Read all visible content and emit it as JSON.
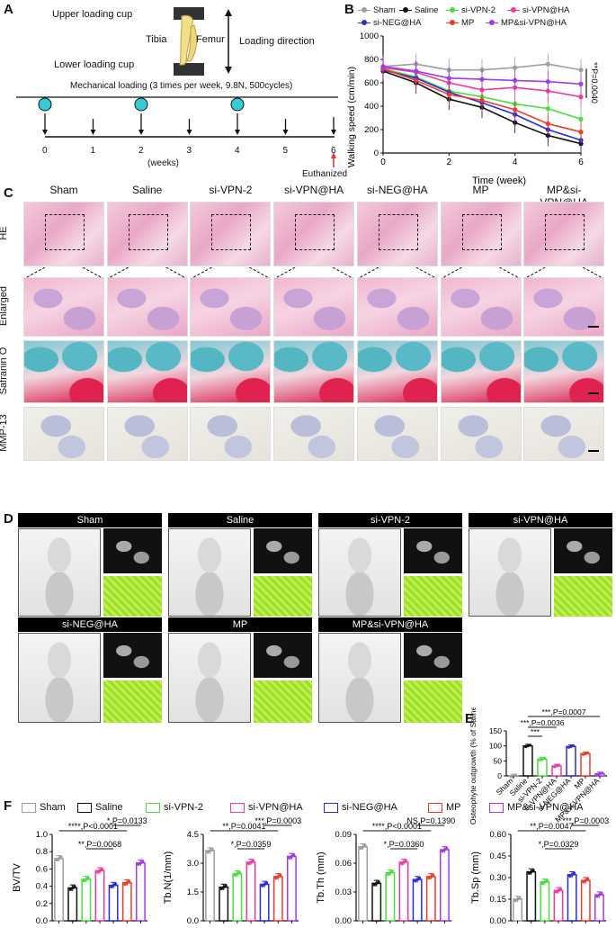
{
  "panels": {
    "A": "A",
    "B": "B",
    "C": "C",
    "D": "D",
    "E": "E",
    "F": "F"
  },
  "panel_a": {
    "upper_cup": "Upper loading cup",
    "lower_cup": "Lower loading cup",
    "tibia": "Tibia",
    "femur": "Femur",
    "direction": "Loading direction",
    "protocol": "Mechanical loading (3 times per week, 9.8N, 500cycles)",
    "ticks": [
      "0",
      "1",
      "2",
      "3",
      "4",
      "5",
      "6"
    ],
    "weeks": "(weeks)",
    "euthanized": "Euthanized",
    "colors": {
      "circle": "#38c9d6",
      "arrow_red": "#e53935"
    }
  },
  "groups": [
    "Sham",
    "Saline",
    "si-VPN-2",
    "si-VPN@HA",
    "si-NEG@HA",
    "MP",
    "MP&si-VPN@HA"
  ],
  "group_colors": [
    "#9e9e9e",
    "#111111",
    "#45e03a",
    "#f03aa0",
    "#2b2bd8",
    "#f0392b",
    "#a23ae8"
  ],
  "panel_c": {
    "rows": [
      "HE",
      "Enlarged",
      "Safranin O",
      "MMP-13"
    ]
  },
  "panel_d": {
    "labels": [
      "Sham",
      "Saline",
      "si-VPN-2",
      "si-VPN@HA",
      "si-NEG@HA",
      "MP",
      "MP&si-VPN@HA"
    ]
  },
  "chart_data": [
    {
      "type": "line",
      "panel": "B",
      "xlabel": "Time (week)",
      "ylabel": "Walking speed (cm/min)",
      "xlim": [
        0,
        6
      ],
      "ylim": [
        0,
        1000
      ],
      "x": [
        0,
        1,
        2,
        3,
        4,
        5,
        6
      ],
      "xticks": [
        "0",
        "2",
        "4",
        "6"
      ],
      "yticks": [
        "0",
        "200",
        "400",
        "600",
        "800",
        "1000"
      ],
      "series": [
        {
          "name": "Sham",
          "values": [
            740,
            760,
            710,
            710,
            730,
            760,
            710
          ]
        },
        {
          "name": "Saline",
          "values": [
            700,
            600,
            460,
            390,
            260,
            150,
            80
          ]
        },
        {
          "name": "si-VPN-2",
          "values": [
            720,
            650,
            530,
            480,
            420,
            380,
            290
          ]
        },
        {
          "name": "si-VPN@HA",
          "values": [
            730,
            690,
            600,
            540,
            560,
            530,
            480
          ]
        },
        {
          "name": "si-NEG@HA",
          "values": [
            710,
            640,
            520,
            430,
            330,
            200,
            110
          ]
        },
        {
          "name": "MP",
          "values": [
            720,
            620,
            500,
            450,
            370,
            250,
            180
          ]
        },
        {
          "name": "MP&si-VPN@HA",
          "values": [
            740,
            700,
            640,
            630,
            620,
            610,
            590
          ]
        }
      ],
      "annotation": "**P=0.0040",
      "legend": "top"
    },
    {
      "type": "bar",
      "panel": "E",
      "ylabel": "Osteophyte outgrowth (% of Saline group)",
      "ylim": [
        0,
        150
      ],
      "yticks": [
        "0",
        "50",
        "100",
        "150"
      ],
      "categories": [
        "Sham",
        "Saline",
        "si-VPN-2",
        "si-VPN@HA",
        "si-NEG@HA",
        "MP",
        "MP&si-VPN@HA"
      ],
      "values": [
        0,
        100,
        56,
        33,
        98,
        74,
        7
      ],
      "annotations": [
        "***",
        "***,P=0.0036",
        "***,P=0.0007"
      ]
    },
    {
      "type": "bar",
      "panel": "F1",
      "ylabel": "BV/TV",
      "ylim": [
        0,
        1.0
      ],
      "yticks": [
        "0.0",
        "0.2",
        "0.4",
        "0.6",
        "0.8",
        "1.0"
      ],
      "categories": [
        "Sham",
        "Saline",
        "si-VPN-2",
        "si-VPN@HA",
        "si-NEG@HA",
        "MP",
        "MP&si-VPN@HA"
      ],
      "values": [
        0.72,
        0.38,
        0.48,
        0.58,
        0.41,
        0.44,
        0.67
      ],
      "annotations": [
        "****,P<0.0001",
        "**,P=0.0068",
        "*,P=0.0133"
      ]
    },
    {
      "type": "bar",
      "panel": "F2",
      "ylabel": "Tb.N(1/mm)",
      "ylim": [
        0,
        4.5
      ],
      "yticks": [
        "0.0",
        "1.5",
        "3.0",
        "4.5"
      ],
      "categories": [
        "Sham",
        "Saline",
        "si-VPN-2",
        "si-VPN@HA",
        "si-NEG@HA",
        "MP",
        "MP&si-VPN@HA"
      ],
      "values": [
        3.65,
        1.75,
        2.45,
        3.05,
        1.9,
        2.3,
        3.35
      ],
      "annotations": [
        "**,P=0.0041",
        "*,P=0.0359",
        "***,P=0.0003"
      ]
    },
    {
      "type": "bar",
      "panel": "F3",
      "ylabel": "Tb.Th (mm)",
      "ylim": [
        0,
        0.09
      ],
      "yticks": [
        "0.00",
        "0.03",
        "0.06",
        "0.09"
      ],
      "categories": [
        "Sham",
        "Saline",
        "si-VPN-2",
        "si-VPN@HA",
        "si-NEG@HA",
        "MP",
        "MP&si-VPN@HA"
      ],
      "values": [
        0.077,
        0.039,
        0.05,
        0.061,
        0.043,
        0.046,
        0.074
      ],
      "annotations": [
        "****,P<0.0001",
        "*,P=0.0360",
        "NS,P=0.1390"
      ]
    },
    {
      "type": "bar",
      "panel": "F4",
      "ylabel": "Tb.Sp (mm)",
      "ylim": [
        0,
        0.6
      ],
      "yticks": [
        "0.00",
        "0.15",
        "0.30",
        "0.45",
        "0.60"
      ],
      "categories": [
        "Sham",
        "Saline",
        "si-VPN-2",
        "si-VPN@HA",
        "si-NEG@HA",
        "MP",
        "MP&si-VPN@HA"
      ],
      "values": [
        0.15,
        0.34,
        0.27,
        0.21,
        0.32,
        0.28,
        0.18
      ],
      "annotations": [
        "**,P=0.0047",
        "*,P=0.0329",
        "***,P=0.0003"
      ]
    }
  ]
}
